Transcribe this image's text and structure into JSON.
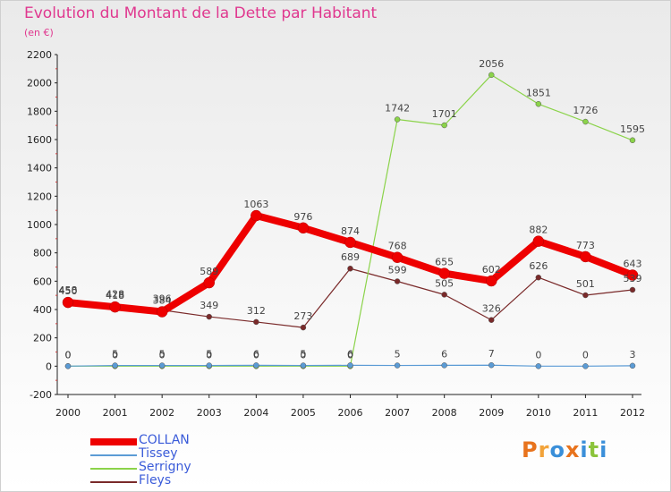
{
  "title": "Evolution du Montant de la Dette par Habitant",
  "subtitle": "(en €)",
  "logo": {
    "text": "Proxiti",
    "letters": [
      {
        "ch": "P",
        "color": "#e8731d"
      },
      {
        "ch": "r",
        "color": "#f2a33a"
      },
      {
        "ch": "o",
        "color": "#3a8fd9"
      },
      {
        "ch": "x",
        "color": "#e8731d"
      },
      {
        "ch": "i",
        "color": "#3a8fd9"
      },
      {
        "ch": "t",
        "color": "#8cc43c"
      },
      {
        "ch": "i",
        "color": "#3a8fd9"
      }
    ]
  },
  "chart_data": {
    "type": "line",
    "title": "Evolution du Montant de la Dette par Habitant",
    "subtitle": "(en €)",
    "xlabel": "",
    "ylabel": "",
    "ylim": [
      -200,
      2200
    ],
    "yticks": [
      -200,
      0,
      200,
      400,
      600,
      800,
      1000,
      1200,
      1400,
      1600,
      1800,
      2000,
      2200
    ],
    "categories": [
      "2000",
      "2001",
      "2002",
      "2003",
      "2004",
      "2005",
      "2006",
      "2007",
      "2008",
      "2009",
      "2010",
      "2011",
      "2012"
    ],
    "grid": false,
    "legend_position": "bottom-left",
    "series": [
      {
        "name": "COLLAN",
        "color": "#ee0000",
        "values": [
          450,
          418,
          384,
          589,
          1063,
          976,
          874,
          768,
          655,
          602,
          882,
          773,
          643
        ]
      },
      {
        "name": "Tissey",
        "color": "#5b9bd5",
        "values": [
          0,
          5,
          5,
          5,
          6,
          5,
          6,
          5,
          6,
          7,
          0,
          0,
          3
        ]
      },
      {
        "name": "Serrigny",
        "color": "#8bd34a",
        "values": [
          0,
          0,
          0,
          0,
          0,
          0,
          0,
          1742,
          1701,
          2056,
          1851,
          1726,
          1595
        ]
      },
      {
        "name": "Fleys",
        "color": "#7a2a2a",
        "values": [
          458,
          428,
          396,
          349,
          312,
          273,
          689,
          599,
          505,
          326,
          626,
          501,
          539
        ]
      }
    ]
  }
}
